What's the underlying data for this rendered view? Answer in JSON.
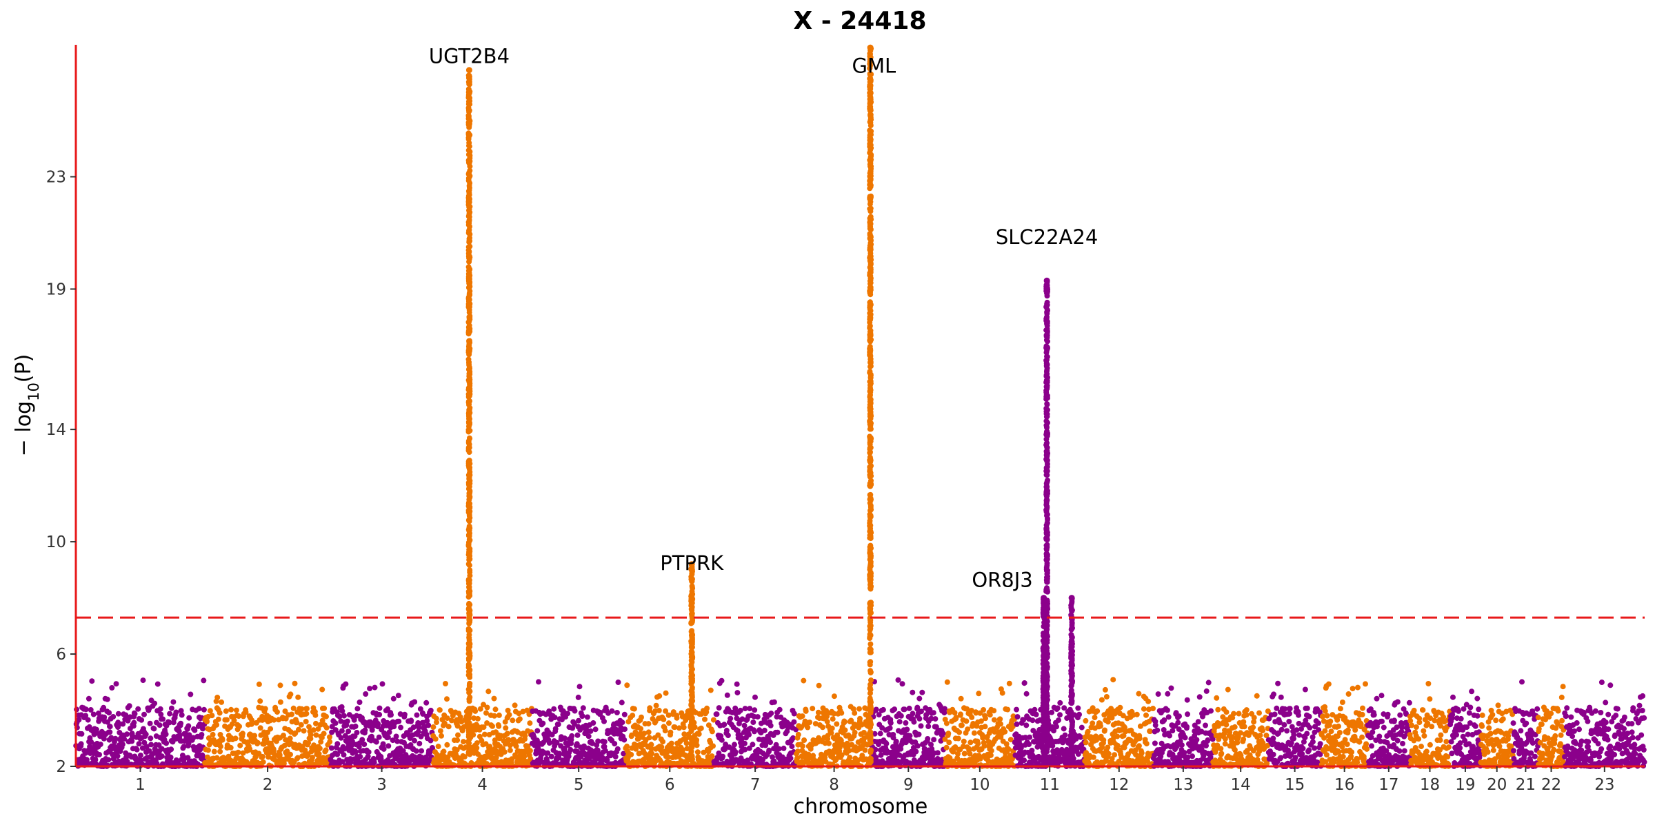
{
  "chart_data": {
    "type": "scatter",
    "subtype": "manhattan",
    "title": "X - 24418",
    "xlabel": "chromosome",
    "ylabel": "−log10(P)",
    "ylabel_parts": {
      "prefix": "− log",
      "sub": "10",
      "suffix": "(P)"
    },
    "ylim": [
      2,
      27.7
    ],
    "yticks": [
      2,
      6,
      10,
      14,
      19,
      23
    ],
    "ytick_labels": [
      "2",
      "6",
      "10",
      "14",
      "19",
      "23"
    ],
    "significance_threshold": 7.3,
    "colors": {
      "odd": "#8B008B",
      "even": "#EE7600",
      "axis": "#E8191A",
      "threshold": "#E8191A"
    },
    "chromosomes": [
      {
        "label": "1",
        "length": 249
      },
      {
        "label": "2",
        "length": 243
      },
      {
        "label": "3",
        "length": 198
      },
      {
        "label": "4",
        "length": 191
      },
      {
        "label": "5",
        "length": 181
      },
      {
        "label": "6",
        "length": 171
      },
      {
        "label": "7",
        "length": 159
      },
      {
        "label": "8",
        "length": 146
      },
      {
        "label": "9",
        "length": 141
      },
      {
        "label": "10",
        "length": 135
      },
      {
        "label": "11",
        "length": 135
      },
      {
        "label": "12",
        "length": 133
      },
      {
        "label": "13",
        "length": 115
      },
      {
        "label": "14",
        "length": 107
      },
      {
        "label": "15",
        "length": 102
      },
      {
        "label": "16",
        "length": 90
      },
      {
        "label": "17",
        "length": 81
      },
      {
        "label": "18",
        "length": 78
      },
      {
        "label": "19",
        "length": 59
      },
      {
        "label": "20",
        "length": 63
      },
      {
        "label": "21",
        "length": 48
      },
      {
        "label": "22",
        "length": 51
      },
      {
        "label": "23",
        "length": 155
      }
    ],
    "peaks": [
      {
        "gene": "UGT2B4",
        "chromosome": "4",
        "position": 70,
        "max": 26.8
      },
      {
        "gene": "GML",
        "chromosome": "8",
        "position": 143,
        "max": 27.6
      },
      {
        "gene": "SLC22A24",
        "chromosome": "11",
        "position": 62,
        "max": 19.3
      },
      {
        "gene": "OR8J3",
        "chromosome": "11",
        "position": 56,
        "max": 8.0
      },
      {
        "gene": "PTPRK",
        "chromosome": "6",
        "position": 128,
        "max": 9.2
      },
      {
        "gene": "",
        "chromosome": "11",
        "position": 110,
        "max": 8.0
      }
    ],
    "annotations": [
      {
        "text": "UGT2B4",
        "chromosome": "4",
        "position": 70,
        "y": 27.05
      },
      {
        "text": "GML",
        "chromosome": "8",
        "position": 150,
        "y": 26.7
      },
      {
        "text": "SLC22A24",
        "chromosome": "11",
        "position": 62,
        "y": 20.6
      },
      {
        "text": "PTPRK",
        "chromosome": "6",
        "position": 128,
        "y": 9.0
      },
      {
        "text": "OR8J3",
        "chromosome": "10",
        "position": 111,
        "y": 8.4
      }
    ]
  }
}
